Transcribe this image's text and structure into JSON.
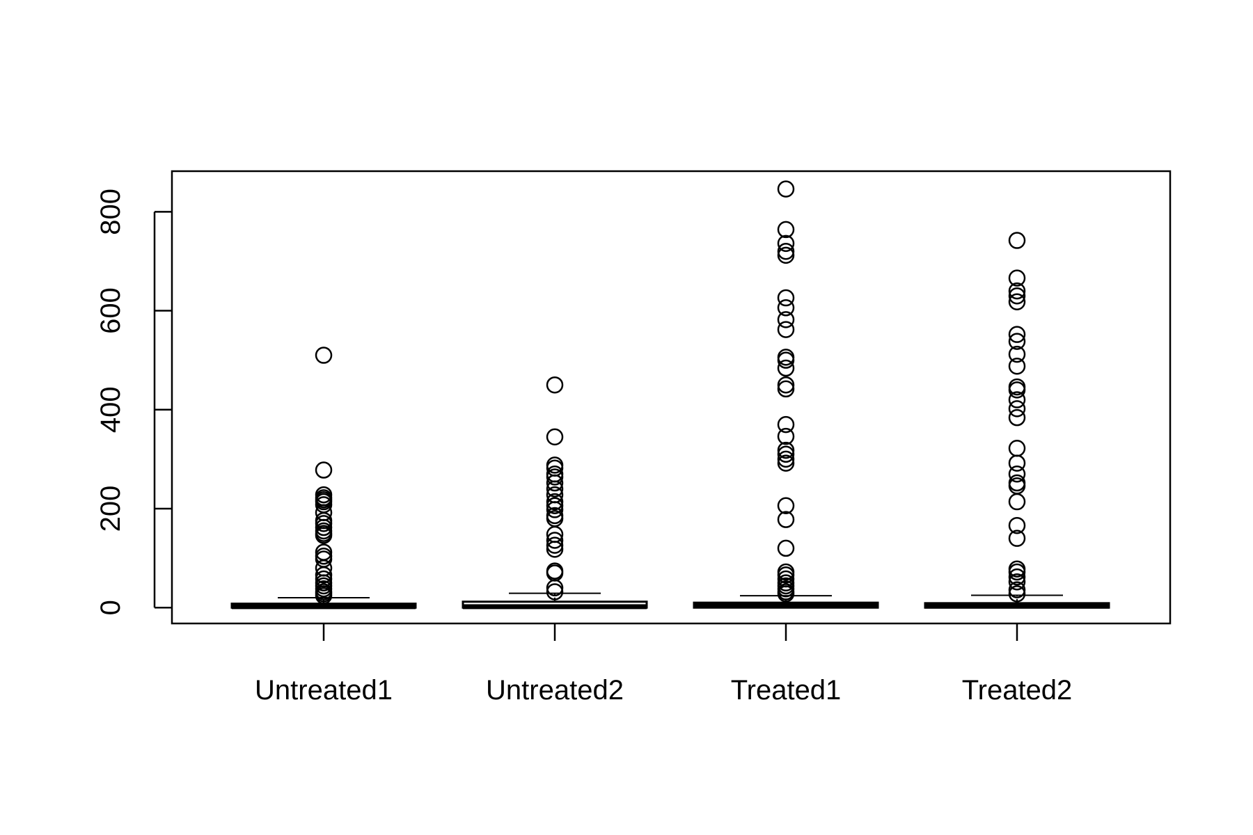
{
  "chart_data": {
    "type": "boxplot",
    "categories": [
      "Untreated1",
      "Untreated2",
      "Treated1",
      "Treated2"
    ],
    "ylim": [
      -32,
      882
    ],
    "yticks": [
      0,
      200,
      400,
      600,
      800
    ],
    "grid": false,
    "boxes": [
      {
        "name": "Untreated1",
        "min": 0,
        "q1": 0,
        "median": 2,
        "q3": 8,
        "max": 20,
        "outliers": [
          510,
          278,
          228,
          222,
          218,
          214,
          208,
          192,
          176,
          170,
          162,
          155,
          150,
          146,
          112,
          104,
          98,
          80,
          66,
          58,
          50,
          44,
          38,
          32,
          28,
          24
        ]
      },
      {
        "name": "Untreated2",
        "min": 0,
        "q1": 0,
        "median": 2,
        "q3": 12,
        "max": 29,
        "outliers": [
          450,
          345,
          288,
          282,
          270,
          264,
          252,
          240,
          228,
          214,
          206,
          198,
          186,
          180,
          148,
          136,
          126,
          118,
          74,
          70,
          40,
          32
        ]
      },
      {
        "name": "Treated1",
        "min": 0,
        "q1": 0,
        "median": 4,
        "q3": 10,
        "max": 24,
        "outliers": [
          846,
          764,
          736,
          720,
          712,
          626,
          606,
          582,
          562,
          506,
          500,
          484,
          450,
          442,
          370,
          346,
          318,
          310,
          300,
          292,
          206,
          178,
          120,
          72,
          66,
          58,
          50,
          44,
          38,
          32,
          28
        ]
      },
      {
        "name": "Treated2",
        "min": 0,
        "q1": 0,
        "median": 3,
        "q3": 9,
        "max": 25,
        "outliers": [
          742,
          666,
          640,
          630,
          618,
          552,
          538,
          512,
          488,
          446,
          440,
          420,
          402,
          384,
          322,
          292,
          270,
          252,
          246,
          214,
          166,
          140,
          78,
          72,
          62,
          52,
          36,
          28
        ]
      }
    ]
  }
}
